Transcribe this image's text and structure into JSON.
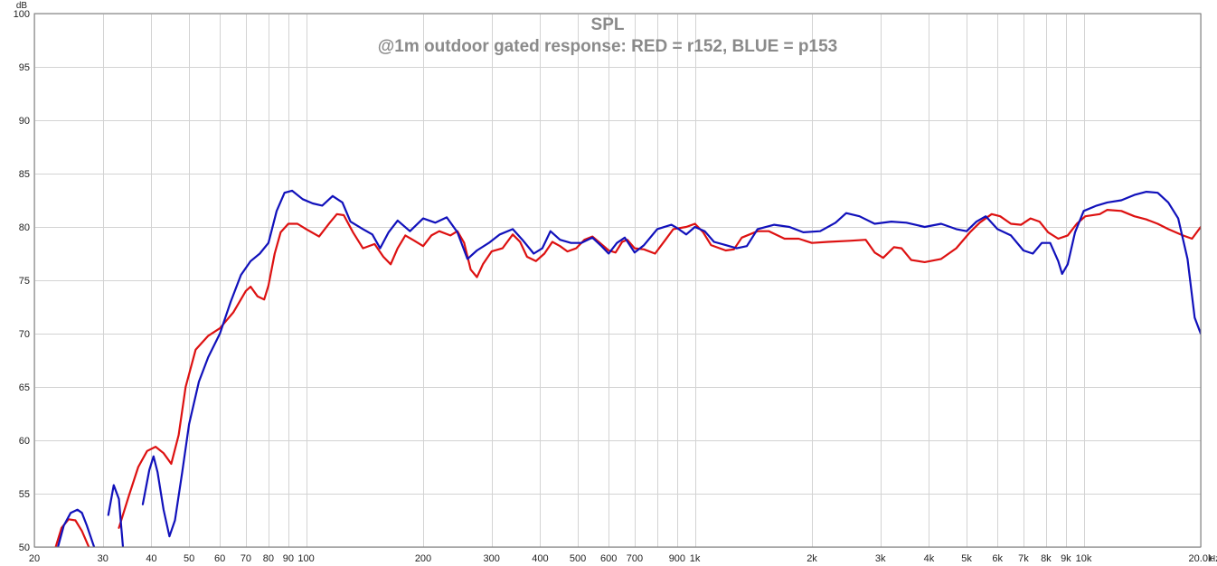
{
  "chart_data": {
    "type": "line",
    "title": "SPL",
    "subtitle": "@1m outdoor gated response: RED = r152, BLUE = p153",
    "y_unit_label": "dB",
    "x_unit_label": "Hz",
    "x_scale": "log",
    "xlim": [
      20,
      20000
    ],
    "ylim": [
      50,
      100
    ],
    "grid": true,
    "y_ticks": [
      50,
      55,
      60,
      65,
      70,
      75,
      80,
      85,
      90,
      95,
      100
    ],
    "x_ticks": [
      {
        "value": 20,
        "label": "20"
      },
      {
        "value": 30,
        "label": "30"
      },
      {
        "value": 40,
        "label": "40"
      },
      {
        "value": 50,
        "label": "50"
      },
      {
        "value": 60,
        "label": "60"
      },
      {
        "value": 70,
        "label": "70"
      },
      {
        "value": 80,
        "label": "80"
      },
      {
        "value": 90,
        "label": "90"
      },
      {
        "value": 100,
        "label": "100"
      },
      {
        "value": 200,
        "label": "200"
      },
      {
        "value": 300,
        "label": "300"
      },
      {
        "value": 400,
        "label": "400"
      },
      {
        "value": 500,
        "label": "500"
      },
      {
        "value": 600,
        "label": "600"
      },
      {
        "value": 700,
        "label": "700"
      },
      {
        "value": 900,
        "label": "900"
      },
      {
        "value": 1000,
        "label": "1k"
      },
      {
        "value": 2000,
        "label": "2k"
      },
      {
        "value": 3000,
        "label": "3k"
      },
      {
        "value": 4000,
        "label": "4k"
      },
      {
        "value": 5000,
        "label": "5k"
      },
      {
        "value": 6000,
        "label": "6k"
      },
      {
        "value": 7000,
        "label": "7k"
      },
      {
        "value": 8000,
        "label": "8k"
      },
      {
        "value": 9000,
        "label": "9k"
      },
      {
        "value": 10000,
        "label": "10k"
      },
      {
        "value": 20000,
        "label": "20.0k"
      }
    ],
    "x_minor_grid": [
      800,
      8000
    ],
    "series": [
      {
        "color": "#dd1111",
        "points": [
          [
            22.7,
            50.0
          ],
          [
            23.5,
            51.8
          ],
          [
            24.5,
            52.6
          ],
          [
            25.5,
            52.5
          ],
          [
            26.5,
            51.5
          ],
          [
            28,
            49.5
          ],
          [
            31.5,
            49.5
          ],
          [
            33,
            51.8
          ],
          [
            35,
            54.8
          ],
          [
            37,
            57.5
          ],
          [
            39,
            59.0
          ],
          [
            41,
            59.4
          ],
          [
            43,
            58.8
          ],
          [
            45,
            57.8
          ],
          [
            47,
            60.5
          ],
          [
            49,
            65.0
          ],
          [
            52,
            68.5
          ],
          [
            56,
            69.8
          ],
          [
            60,
            70.5
          ],
          [
            65,
            72.0
          ],
          [
            70,
            74.0
          ],
          [
            72,
            74.4
          ],
          [
            75,
            73.5
          ],
          [
            78,
            73.2
          ],
          [
            80,
            74.5
          ],
          [
            83,
            77.5
          ],
          [
            86,
            79.5
          ],
          [
            90,
            80.3
          ],
          [
            95,
            80.3
          ],
          [
            100,
            79.8
          ],
          [
            108,
            79.1
          ],
          [
            115,
            80.4
          ],
          [
            120,
            81.2
          ],
          [
            125,
            81.1
          ],
          [
            132,
            79.5
          ],
          [
            140,
            78.0
          ],
          [
            150,
            78.4
          ],
          [
            158,
            77.2
          ],
          [
            165,
            76.5
          ],
          [
            172,
            78.0
          ],
          [
            180,
            79.2
          ],
          [
            190,
            78.7
          ],
          [
            200,
            78.2
          ],
          [
            210,
            79.2
          ],
          [
            220,
            79.6
          ],
          [
            235,
            79.2
          ],
          [
            245,
            79.6
          ],
          [
            255,
            78.5
          ],
          [
            265,
            76.0
          ],
          [
            275,
            75.3
          ],
          [
            285,
            76.5
          ],
          [
            300,
            77.7
          ],
          [
            320,
            78.0
          ],
          [
            340,
            79.3
          ],
          [
            355,
            78.6
          ],
          [
            370,
            77.2
          ],
          [
            390,
            76.8
          ],
          [
            410,
            77.5
          ],
          [
            430,
            78.6
          ],
          [
            450,
            78.2
          ],
          [
            470,
            77.7
          ],
          [
            495,
            78.0
          ],
          [
            520,
            78.8
          ],
          [
            545,
            79.1
          ],
          [
            570,
            78.5
          ],
          [
            600,
            77.8
          ],
          [
            625,
            77.6
          ],
          [
            650,
            78.6
          ],
          [
            670,
            78.8
          ],
          [
            700,
            78.0
          ],
          [
            740,
            77.9
          ],
          [
            790,
            77.5
          ],
          [
            840,
            78.8
          ],
          [
            880,
            79.8
          ],
          [
            950,
            80.0
          ],
          [
            1000,
            80.3
          ],
          [
            1050,
            79.5
          ],
          [
            1100,
            78.3
          ],
          [
            1200,
            77.8
          ],
          [
            1260,
            77.9
          ],
          [
            1320,
            79.0
          ],
          [
            1450,
            79.6
          ],
          [
            1550,
            79.6
          ],
          [
            1700,
            78.9
          ],
          [
            1850,
            78.9
          ],
          [
            2000,
            78.5
          ],
          [
            2200,
            78.6
          ],
          [
            2500,
            78.7
          ],
          [
            2750,
            78.8
          ],
          [
            2900,
            77.6
          ],
          [
            3050,
            77.1
          ],
          [
            3250,
            78.1
          ],
          [
            3400,
            78.0
          ],
          [
            3600,
            76.9
          ],
          [
            3900,
            76.7
          ],
          [
            4300,
            77.0
          ],
          [
            4700,
            78.0
          ],
          [
            5100,
            79.5
          ],
          [
            5400,
            80.4
          ],
          [
            5800,
            81.2
          ],
          [
            6100,
            81.0
          ],
          [
            6500,
            80.3
          ],
          [
            6900,
            80.2
          ],
          [
            7300,
            80.8
          ],
          [
            7700,
            80.5
          ],
          [
            8100,
            79.5
          ],
          [
            8600,
            78.9
          ],
          [
            9100,
            79.2
          ],
          [
            9600,
            80.3
          ],
          [
            10100,
            81.0
          ],
          [
            11000,
            81.2
          ],
          [
            11500,
            81.6
          ],
          [
            12500,
            81.5
          ],
          [
            13500,
            81.0
          ],
          [
            14500,
            80.7
          ],
          [
            15500,
            80.3
          ],
          [
            16500,
            79.8
          ],
          [
            18000,
            79.2
          ],
          [
            19000,
            78.9
          ],
          [
            20000,
            80.0
          ]
        ]
      },
      {
        "color": "#1111bb",
        "points": [
          [
            23.0,
            50.0
          ],
          [
            23.8,
            52.0
          ],
          [
            24.8,
            53.2
          ],
          [
            25.8,
            53.5
          ],
          [
            26.5,
            53.2
          ],
          [
            27.3,
            52.0
          ],
          [
            28.5,
            50.0
          ],
          [
            30.3,
            50.0
          ],
          [
            31.0,
            53.0
          ],
          [
            32.0,
            55.8
          ],
          [
            33.0,
            54.5
          ],
          [
            33.8,
            50.0
          ],
          [
            36.5,
            50.0
          ],
          [
            38.0,
            54.0
          ],
          [
            39.5,
            57.2
          ],
          [
            40.5,
            58.5
          ],
          [
            41.5,
            57.0
          ],
          [
            43.0,
            53.5
          ],
          [
            44.5,
            51.0
          ],
          [
            46.0,
            52.5
          ],
          [
            48.0,
            57.0
          ],
          [
            50.0,
            61.5
          ],
          [
            53.0,
            65.5
          ],
          [
            56.0,
            67.8
          ],
          [
            60.0,
            70.0
          ],
          [
            64.0,
            73.0
          ],
          [
            68.0,
            75.5
          ],
          [
            72.0,
            76.8
          ],
          [
            76.0,
            77.5
          ],
          [
            80.0,
            78.5
          ],
          [
            84.0,
            81.5
          ],
          [
            88.0,
            83.2
          ],
          [
            92.0,
            83.4
          ],
          [
            98.0,
            82.6
          ],
          [
            104.0,
            82.2
          ],
          [
            110.0,
            82.0
          ],
          [
            117.0,
            82.9
          ],
          [
            124.0,
            82.3
          ],
          [
            130.0,
            80.5
          ],
          [
            140.0,
            79.8
          ],
          [
            148.0,
            79.3
          ],
          [
            155.0,
            78.0
          ],
          [
            163.0,
            79.5
          ],
          [
            172.0,
            80.6
          ],
          [
            185.0,
            79.6
          ],
          [
            200.0,
            80.8
          ],
          [
            215.0,
            80.4
          ],
          [
            230.0,
            80.9
          ],
          [
            245.0,
            79.5
          ],
          [
            260.0,
            77.0
          ],
          [
            275.0,
            77.8
          ],
          [
            295.0,
            78.5
          ],
          [
            315.0,
            79.3
          ],
          [
            340.0,
            79.8
          ],
          [
            360.0,
            78.8
          ],
          [
            385.0,
            77.5
          ],
          [
            405.0,
            78.0
          ],
          [
            425.0,
            79.6
          ],
          [
            450.0,
            78.8
          ],
          [
            480.0,
            78.5
          ],
          [
            510.0,
            78.5
          ],
          [
            545.0,
            79.0
          ],
          [
            575.0,
            78.2
          ],
          [
            600.0,
            77.5
          ],
          [
            630.0,
            78.5
          ],
          [
            660.0,
            79.0
          ],
          [
            700.0,
            77.6
          ],
          [
            740.0,
            78.3
          ],
          [
            800.0,
            79.8
          ],
          [
            870.0,
            80.2
          ],
          [
            900.0,
            79.9
          ],
          [
            950.0,
            79.3
          ],
          [
            1000.0,
            80.0
          ],
          [
            1060.0,
            79.6
          ],
          [
            1120.0,
            78.6
          ],
          [
            1200.0,
            78.3
          ],
          [
            1280.0,
            78.0
          ],
          [
            1360.0,
            78.2
          ],
          [
            1450.0,
            79.8
          ],
          [
            1600.0,
            80.2
          ],
          [
            1750.0,
            80.0
          ],
          [
            1900.0,
            79.5
          ],
          [
            2100.0,
            79.6
          ],
          [
            2300.0,
            80.4
          ],
          [
            2450.0,
            81.3
          ],
          [
            2650.0,
            81.0
          ],
          [
            2900.0,
            80.3
          ],
          [
            3200.0,
            80.5
          ],
          [
            3500.0,
            80.4
          ],
          [
            3900.0,
            80.0
          ],
          [
            4300.0,
            80.3
          ],
          [
            4700.0,
            79.8
          ],
          [
            5000.0,
            79.6
          ],
          [
            5300.0,
            80.5
          ],
          [
            5600.0,
            81.0
          ],
          [
            6000.0,
            79.8
          ],
          [
            6500.0,
            79.2
          ],
          [
            7000.0,
            77.8
          ],
          [
            7400.0,
            77.5
          ],
          [
            7800.0,
            78.5
          ],
          [
            8200.0,
            78.5
          ],
          [
            8600.0,
            76.8
          ],
          [
            8800.0,
            75.6
          ],
          [
            9100.0,
            76.5
          ],
          [
            9500.0,
            79.5
          ],
          [
            10000.0,
            81.5
          ],
          [
            10800.0,
            82.0
          ],
          [
            11500.0,
            82.3
          ],
          [
            12500.0,
            82.5
          ],
          [
            13500.0,
            83.0
          ],
          [
            14500.0,
            83.3
          ],
          [
            15500.0,
            83.2
          ],
          [
            16500.0,
            82.3
          ],
          [
            17500.0,
            80.8
          ],
          [
            18500.0,
            77.0
          ],
          [
            19300.0,
            71.5
          ],
          [
            20000.0,
            70.0
          ]
        ]
      }
    ]
  }
}
